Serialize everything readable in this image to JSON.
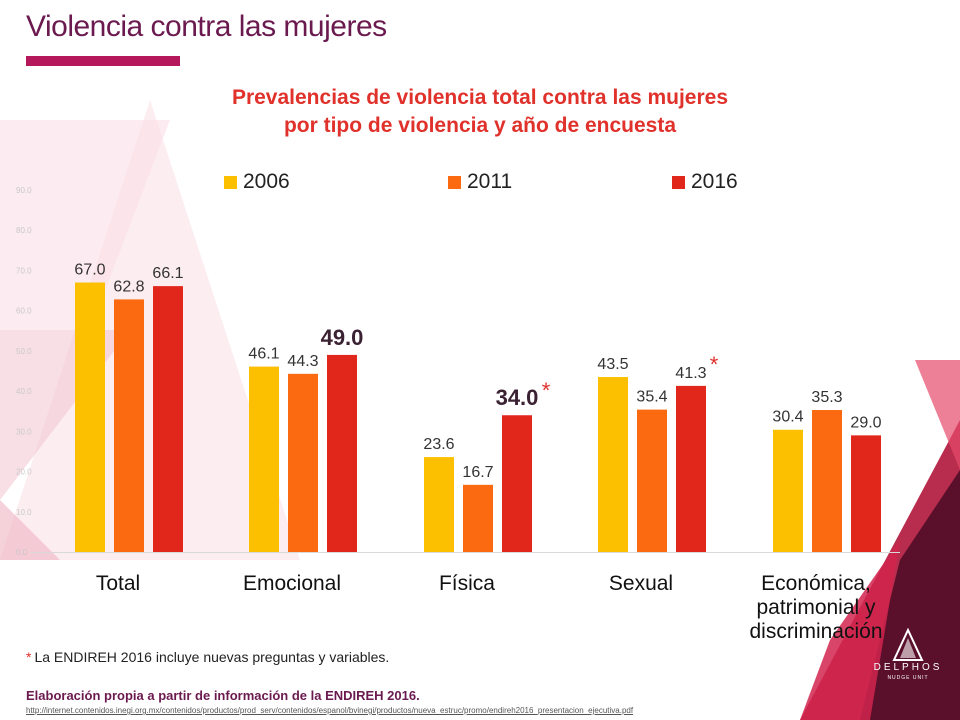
{
  "slide": {
    "title": "Violencia contra las mujeres",
    "footnote_asterisk": "*",
    "footnote_text": "La ENDIREH 2016 incluye nuevas preguntas y variables.",
    "source": "Elaboración propia a partir de información de la ENDIREH 2016.",
    "source_url": "http://internet.contenidos.inegi.org.mx/contenidos/productos/prod_serv/contenidos/espanol/bvinegi/productos/nueva_estruc/promo/endireh2016_presentacion_ejecutiva.pdf",
    "logo_word": "DELPHOS",
    "logo_sub": "NUDGE UNIT"
  },
  "colors": {
    "2006": "#fcc000",
    "2011": "#fb6a10",
    "2016": "#e1261c",
    "title": "#e0312b",
    "brand": "#6b1a4f",
    "accent_bar": "#b5195b"
  },
  "chart_data": {
    "type": "bar",
    "title_lines": [
      "Prevalencias de violencia total contra las mujeres",
      "por tipo de violencia y año de encuesta"
    ],
    "categories": [
      [
        "Total"
      ],
      [
        "Emocional"
      ],
      [
        "Física"
      ],
      [
        "Sexual"
      ],
      [
        "Económica,",
        "patrimonial y",
        "discriminación"
      ]
    ],
    "series": [
      {
        "name": "2006",
        "values": [
          67.0,
          46.1,
          23.6,
          43.5,
          30.4
        ]
      },
      {
        "name": "2011",
        "values": [
          62.8,
          44.3,
          16.7,
          35.4,
          35.3
        ]
      },
      {
        "name": "2016",
        "values": [
          66.1,
          49.0,
          34.0,
          41.3,
          29.0
        ]
      }
    ],
    "value_labels": [
      [
        "67.0",
        "46.1",
        "23.6",
        "43.5",
        "30.4"
      ],
      [
        "62.8",
        "44.3",
        "16.7",
        "35.4",
        "35.3"
      ],
      [
        "66.1",
        "49.0",
        "34.0",
        "41.3",
        "29.0"
      ]
    ],
    "emphasized_labels": [
      [
        2,
        1
      ],
      [
        2,
        2
      ]
    ],
    "asterisk_labels": [
      [
        2,
        2
      ],
      [
        2,
        3
      ]
    ],
    "asterisk": "*",
    "yticks": [
      "0.0",
      "10.0",
      "20.0",
      "30.0",
      "40.0",
      "50.0",
      "60.0",
      "70.0",
      "80.0",
      "90.0"
    ],
    "ylim": [
      0,
      90
    ],
    "legend_position": "top",
    "grid": false
  }
}
